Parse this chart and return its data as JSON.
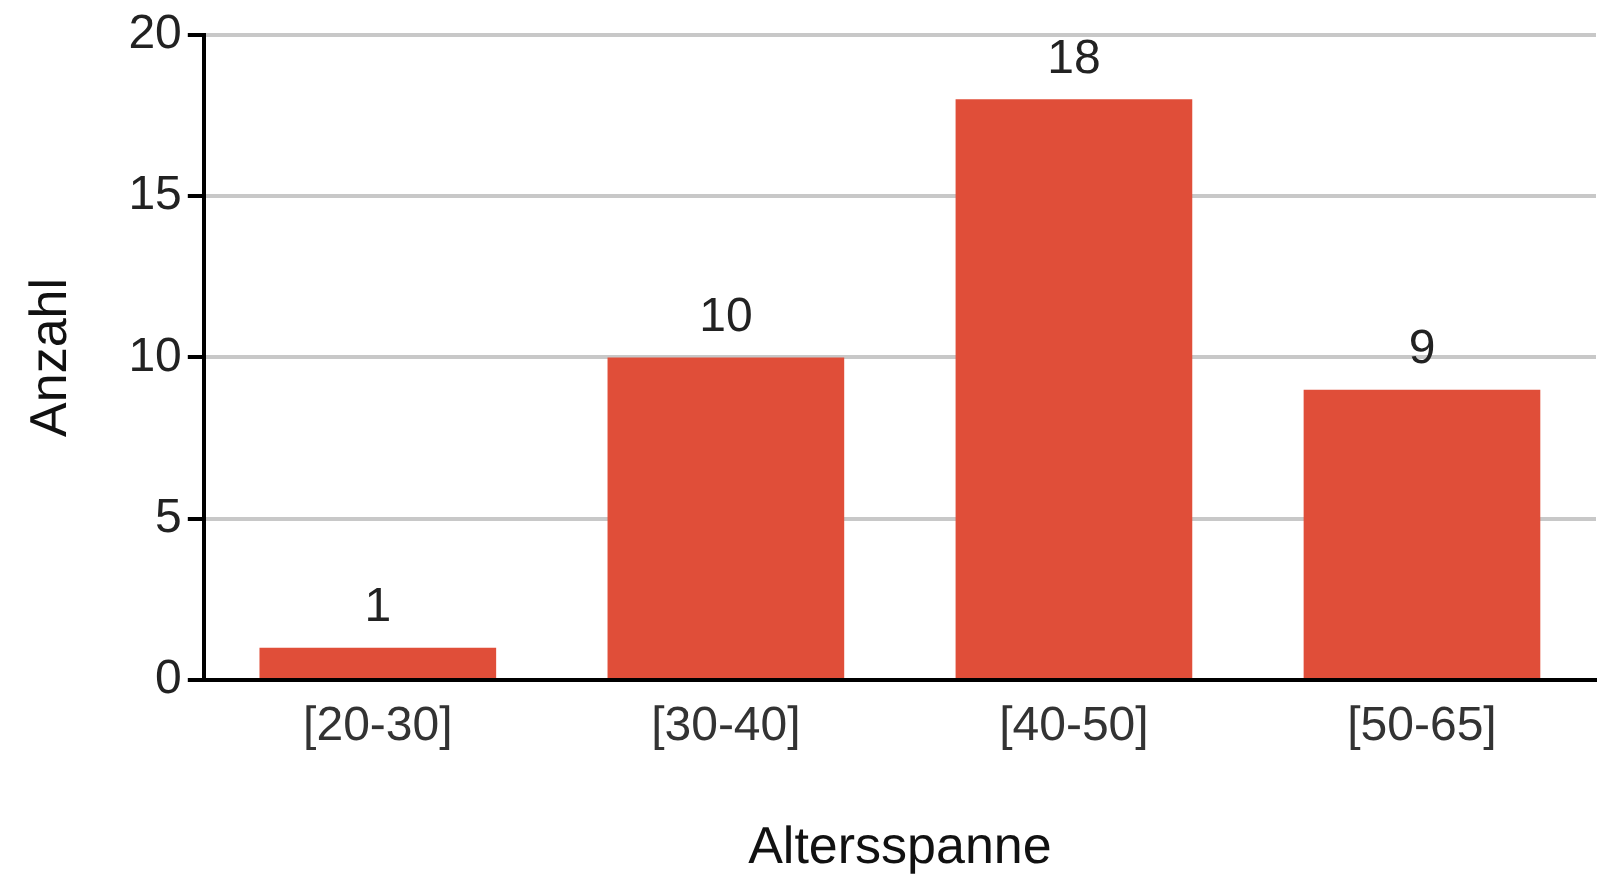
{
  "chart_data": {
    "type": "bar",
    "xlabel": "Altersspanne",
    "ylabel": "Anzahl",
    "categories": [
      "[20-30]",
      "[30-40]",
      "[40-50]",
      "[50-65]"
    ],
    "series": [
      {
        "color": "#e04e39",
        "values": [
          1,
          10,
          18,
          9
        ]
      }
    ],
    "ylim": [
      0,
      20
    ],
    "yticks": [
      0,
      5,
      10,
      15,
      20
    ],
    "grid": "y",
    "legend": false,
    "data_labels": true
  }
}
